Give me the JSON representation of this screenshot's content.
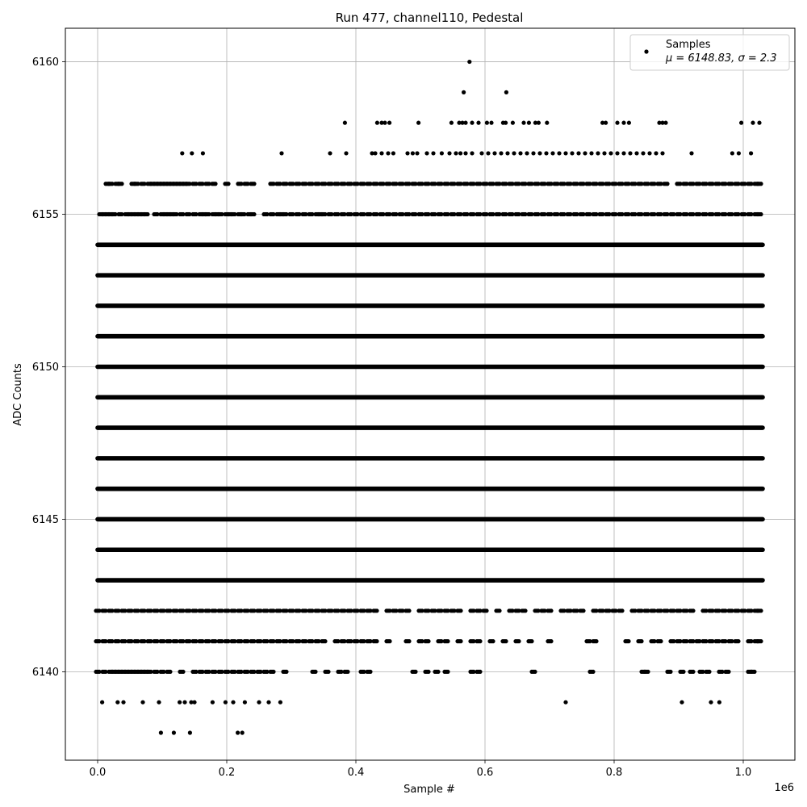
{
  "chart_data": {
    "type": "scatter",
    "title": "Run 477, channel110, Pedestal",
    "xlabel": "Sample #",
    "ylabel": "ADC Counts",
    "x_offset_label": "1e6",
    "xlim": [
      -0.05,
      1.08
    ],
    "ylim": [
      6137.1,
      6161.1
    ],
    "x_ticks": [
      0.0,
      0.2,
      0.4,
      0.6,
      0.8,
      1.0
    ],
    "x_tick_labels": [
      "0.0",
      "0.2",
      "0.4",
      "0.6",
      "0.8",
      "1.0"
    ],
    "y_ticks": [
      6140,
      6145,
      6150,
      6155,
      6160
    ],
    "y_tick_labels": [
      "6140",
      "6145",
      "6150",
      "6155",
      "6160"
    ],
    "grid": true,
    "legend_position": "top-right",
    "series": [
      {
        "name": "Samples",
        "annotation": "μ = 6148.83, σ = 2.3",
        "color": "#000000",
        "marker": "circle",
        "dense_levels": [
          {
            "y": 6154,
            "x_range": [
              0.0,
              1.03
            ]
          },
          {
            "y": 6153,
            "x_range": [
              0.0,
              1.03
            ]
          },
          {
            "y": 6152,
            "x_range": [
              0.0,
              1.03
            ]
          },
          {
            "y": 6151,
            "x_range": [
              0.0,
              1.03
            ]
          },
          {
            "y": 6150,
            "x_range": [
              0.0,
              1.03
            ]
          },
          {
            "y": 6149,
            "x_range": [
              0.0,
              1.03
            ]
          },
          {
            "y": 6148,
            "x_range": [
              0.0,
              1.03
            ]
          },
          {
            "y": 6147,
            "x_range": [
              0.0,
              1.03
            ]
          },
          {
            "y": 6146,
            "x_range": [
              0.0,
              1.03
            ]
          },
          {
            "y": 6145,
            "x_range": [
              0.0,
              1.03
            ]
          },
          {
            "y": 6144,
            "x_range": [
              0.0,
              1.03
            ]
          },
          {
            "y": 6143,
            "x_range": [
              0.0,
              1.03
            ]
          }
        ],
        "medium_levels": [
          {
            "y": 6155,
            "x": [
              0.005,
              0.01,
              0.015,
              0.02,
              0.025,
              0.035,
              0.045,
              0.05,
              0.055,
              0.06,
              0.065,
              0.07,
              0.075,
              0.09,
              0.1,
              0.105,
              0.11,
              0.115,
              0.12,
              0.13,
              0.14,
              0.15,
              0.16,
              0.165,
              0.17,
              0.18,
              0.185,
              0.19,
              0.2,
              0.205,
              0.21,
              0.22,
              0.225,
              0.235,
              0.24,
              0.26,
              0.27,
              0.28,
              0.285,
              0.29,
              0.3,
              0.31,
              0.32,
              0.33,
              0.34,
              0.345,
              0.35,
              0.36,
              0.37,
              0.38,
              0.39,
              0.4,
              0.41,
              0.42,
              0.43,
              0.44,
              0.45,
              0.46,
              0.47,
              0.48,
              0.49,
              0.5,
              0.51,
              0.52,
              0.53,
              0.54,
              0.55,
              0.56,
              0.57,
              0.58,
              0.59,
              0.6,
              0.61,
              0.62,
              0.63,
              0.64,
              0.65,
              0.66,
              0.67,
              0.68,
              0.69,
              0.7,
              0.71,
              0.72,
              0.73,
              0.74,
              0.75,
              0.76,
              0.77,
              0.78,
              0.79,
              0.8,
              0.81,
              0.82,
              0.83,
              0.84,
              0.85,
              0.86,
              0.87,
              0.88,
              0.89,
              0.9,
              0.91,
              0.92,
              0.93,
              0.94,
              0.95,
              0.96,
              0.97,
              0.98,
              0.99,
              1.0,
              1.01,
              1.02,
              1.025
            ]
          },
          {
            "y": 6156,
            "x": [
              0.015,
              0.02,
              0.03,
              0.035,
              0.055,
              0.06,
              0.07,
              0.08,
              0.085,
              0.09,
              0.095,
              0.1,
              0.105,
              0.11,
              0.115,
              0.12,
              0.125,
              0.13,
              0.135,
              0.14,
              0.15,
              0.16,
              0.17,
              0.18,
              0.2,
              0.22,
              0.23,
              0.24,
              0.27,
              0.28,
              0.29,
              0.3,
              0.31,
              0.32,
              0.33,
              0.34,
              0.35,
              0.36,
              0.37,
              0.38,
              0.39,
              0.4,
              0.41,
              0.42,
              0.43,
              0.44,
              0.45,
              0.46,
              0.47,
              0.48,
              0.49,
              0.5,
              0.51,
              0.52,
              0.53,
              0.54,
              0.55,
              0.56,
              0.57,
              0.58,
              0.59,
              0.6,
              0.61,
              0.62,
              0.63,
              0.64,
              0.65,
              0.66,
              0.67,
              0.68,
              0.69,
              0.7,
              0.71,
              0.72,
              0.73,
              0.74,
              0.75,
              0.76,
              0.77,
              0.78,
              0.79,
              0.8,
              0.81,
              0.82,
              0.83,
              0.84,
              0.85,
              0.86,
              0.87,
              0.88,
              0.9,
              0.91,
              0.92,
              0.93,
              0.94,
              0.95,
              0.96,
              0.97,
              0.98,
              0.99,
              1.0,
              1.01,
              1.02,
              1.025
            ]
          },
          {
            "y": 6142,
            "x": [
              0.0,
              0.01,
              0.02,
              0.03,
              0.04,
              0.05,
              0.06,
              0.07,
              0.08,
              0.09,
              0.1,
              0.11,
              0.12,
              0.13,
              0.14,
              0.15,
              0.16,
              0.17,
              0.18,
              0.19,
              0.2,
              0.21,
              0.22,
              0.23,
              0.24,
              0.25,
              0.26,
              0.27,
              0.28,
              0.29,
              0.3,
              0.31,
              0.32,
              0.33,
              0.34,
              0.35,
              0.36,
              0.37,
              0.38,
              0.39,
              0.4,
              0.41,
              0.42,
              0.43,
              0.45,
              0.46,
              0.47,
              0.48,
              0.5,
              0.51,
              0.52,
              0.53,
              0.54,
              0.55,
              0.56,
              0.58,
              0.59,
              0.6,
              0.62,
              0.64,
              0.65,
              0.66,
              0.68,
              0.69,
              0.7,
              0.72,
              0.73,
              0.74,
              0.75,
              0.77,
              0.78,
              0.79,
              0.8,
              0.81,
              0.83,
              0.84,
              0.85,
              0.86,
              0.87,
              0.88,
              0.89,
              0.9,
              0.91,
              0.92,
              0.94,
              0.95,
              0.96,
              0.97,
              0.98,
              0.99,
              1.0,
              1.01,
              1.02,
              1.025
            ]
          },
          {
            "y": 6141,
            "x": [
              0.0,
              0.01,
              0.02,
              0.03,
              0.04,
              0.05,
              0.06,
              0.07,
              0.08,
              0.09,
              0.1,
              0.11,
              0.12,
              0.13,
              0.14,
              0.15,
              0.16,
              0.17,
              0.18,
              0.19,
              0.2,
              0.21,
              0.22,
              0.23,
              0.24,
              0.25,
              0.26,
              0.27,
              0.28,
              0.29,
              0.3,
              0.31,
              0.32,
              0.33,
              0.34,
              0.35,
              0.37,
              0.38,
              0.39,
              0.4,
              0.41,
              0.42,
              0.43,
              0.45,
              0.48,
              0.5,
              0.51,
              0.53,
              0.54,
              0.56,
              0.58,
              0.59,
              0.61,
              0.63,
              0.65,
              0.67,
              0.7,
              0.76,
              0.77,
              0.82,
              0.84,
              0.86,
              0.87,
              0.89,
              0.9,
              0.91,
              0.92,
              0.93,
              0.94,
              0.95,
              0.96,
              0.97,
              0.98,
              0.99,
              1.01,
              1.02,
              1.025
            ]
          },
          {
            "y": 6140,
            "x": [
              0.0,
              0.01,
              0.02,
              0.025,
              0.03,
              0.035,
              0.04,
              0.045,
              0.05,
              0.055,
              0.06,
              0.065,
              0.07,
              0.075,
              0.08,
              0.09,
              0.1,
              0.11,
              0.13,
              0.15,
              0.16,
              0.17,
              0.18,
              0.19,
              0.2,
              0.21,
              0.22,
              0.23,
              0.24,
              0.25,
              0.26,
              0.27,
              0.29,
              0.335,
              0.355,
              0.375,
              0.385,
              0.41,
              0.42,
              0.49,
              0.51,
              0.525,
              0.54,
              0.58,
              0.59,
              0.675,
              0.765,
              0.845,
              0.85,
              0.885,
              0.905,
              0.92,
              0.935,
              0.945,
              0.965,
              0.975,
              1.01,
              1.015
            ]
          }
        ],
        "sparse_points": [
          [
            0.576,
            6160
          ],
          [
            0.567,
            6159
          ],
          [
            0.633,
            6159
          ],
          [
            0.383,
            6158
          ],
          [
            0.433,
            6158
          ],
          [
            0.44,
            6158
          ],
          [
            0.445,
            6158
          ],
          [
            0.452,
            6158
          ],
          [
            0.497,
            6158
          ],
          [
            0.548,
            6158
          ],
          [
            0.56,
            6158
          ],
          [
            0.565,
            6158
          ],
          [
            0.57,
            6158
          ],
          [
            0.58,
            6158
          ],
          [
            0.59,
            6158
          ],
          [
            0.603,
            6158
          ],
          [
            0.61,
            6158
          ],
          [
            0.628,
            6158
          ],
          [
            0.632,
            6158
          ],
          [
            0.643,
            6158
          ],
          [
            0.66,
            6158
          ],
          [
            0.668,
            6158
          ],
          [
            0.678,
            6158
          ],
          [
            0.683,
            6158
          ],
          [
            0.696,
            6158
          ],
          [
            0.782,
            6158
          ],
          [
            0.787,
            6158
          ],
          [
            0.805,
            6158
          ],
          [
            0.815,
            6158
          ],
          [
            0.823,
            6158
          ],
          [
            0.87,
            6158
          ],
          [
            0.875,
            6158
          ],
          [
            0.88,
            6158
          ],
          [
            0.997,
            6158
          ],
          [
            1.015,
            6158
          ],
          [
            1.025,
            6158
          ],
          [
            0.131,
            6157
          ],
          [
            0.146,
            6157
          ],
          [
            0.163,
            6157
          ],
          [
            0.285,
            6157
          ],
          [
            0.36,
            6157
          ],
          [
            0.385,
            6157
          ],
          [
            0.425,
            6157
          ],
          [
            0.43,
            6157
          ],
          [
            0.44,
            6157
          ],
          [
            0.45,
            6157
          ],
          [
            0.458,
            6157
          ],
          [
            0.48,
            6157
          ],
          [
            0.488,
            6157
          ],
          [
            0.495,
            6157
          ],
          [
            0.51,
            6157
          ],
          [
            0.52,
            6157
          ],
          [
            0.533,
            6157
          ],
          [
            0.545,
            6157
          ],
          [
            0.555,
            6157
          ],
          [
            0.562,
            6157
          ],
          [
            0.57,
            6157
          ],
          [
            0.58,
            6157
          ],
          [
            0.595,
            6157
          ],
          [
            0.605,
            6157
          ],
          [
            0.615,
            6157
          ],
          [
            0.625,
            6157
          ],
          [
            0.635,
            6157
          ],
          [
            0.645,
            6157
          ],
          [
            0.655,
            6157
          ],
          [
            0.665,
            6157
          ],
          [
            0.675,
            6157
          ],
          [
            0.685,
            6157
          ],
          [
            0.695,
            6157
          ],
          [
            0.705,
            6157
          ],
          [
            0.715,
            6157
          ],
          [
            0.725,
            6157
          ],
          [
            0.735,
            6157
          ],
          [
            0.745,
            6157
          ],
          [
            0.755,
            6157
          ],
          [
            0.765,
            6157
          ],
          [
            0.775,
            6157
          ],
          [
            0.785,
            6157
          ],
          [
            0.795,
            6157
          ],
          [
            0.805,
            6157
          ],
          [
            0.815,
            6157
          ],
          [
            0.825,
            6157
          ],
          [
            0.835,
            6157
          ],
          [
            0.845,
            6157
          ],
          [
            0.855,
            6157
          ],
          [
            0.865,
            6157
          ],
          [
            0.875,
            6157
          ],
          [
            0.92,
            6157
          ],
          [
            0.983,
            6157
          ],
          [
            0.993,
            6157
          ],
          [
            1.012,
            6157
          ],
          [
            0.007,
            6139
          ],
          [
            0.031,
            6139
          ],
          [
            0.04,
            6139
          ],
          [
            0.07,
            6139
          ],
          [
            0.095,
            6139
          ],
          [
            0.127,
            6139
          ],
          [
            0.135,
            6139
          ],
          [
            0.145,
            6139
          ],
          [
            0.15,
            6139
          ],
          [
            0.178,
            6139
          ],
          [
            0.198,
            6139
          ],
          [
            0.21,
            6139
          ],
          [
            0.228,
            6139
          ],
          [
            0.25,
            6139
          ],
          [
            0.265,
            6139
          ],
          [
            0.283,
            6139
          ],
          [
            0.725,
            6139
          ],
          [
            0.905,
            6139
          ],
          [
            0.95,
            6139
          ],
          [
            0.963,
            6139
          ],
          [
            0.098,
            6138
          ],
          [
            0.118,
            6138
          ],
          [
            0.143,
            6138
          ],
          [
            0.217,
            6138
          ],
          [
            0.224,
            6138
          ]
        ]
      }
    ]
  }
}
